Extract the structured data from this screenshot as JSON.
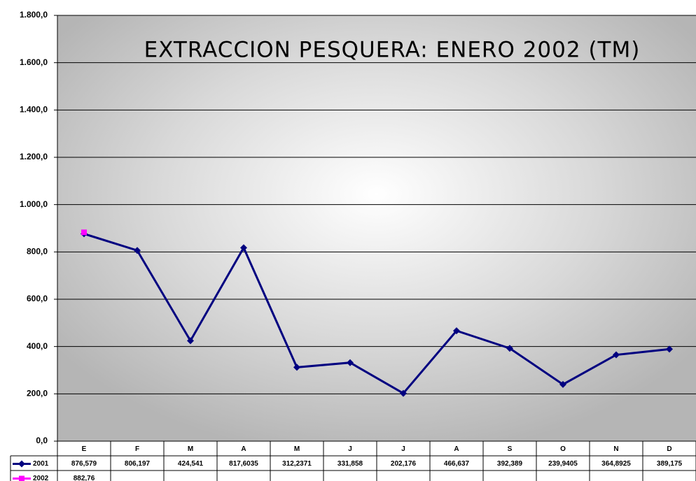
{
  "chart_data": {
    "type": "line",
    "title": "EXTRACCION PESQUERA: ENERO 2002 (TM)",
    "categories": [
      "E",
      "F",
      "M",
      "A",
      "M",
      "J",
      "J",
      "A",
      "S",
      "O",
      "N",
      "D"
    ],
    "series": [
      {
        "name": "2001",
        "color": "#000080",
        "values": [
          876.579,
          806.197,
          424.541,
          817.6035,
          312.2371,
          331.858,
          202.176,
          466.637,
          392.389,
          239.9405,
          364.8925,
          389.175
        ],
        "value_labels": [
          "876,579",
          "806,197",
          "424,541",
          "817,6035",
          "312,2371",
          "331,858",
          "202,176",
          "466,637",
          "392,389",
          "239,9405",
          "364,8925",
          "389,175"
        ]
      },
      {
        "name": "2002",
        "color": "#ff00ff",
        "values": [
          882.76,
          null,
          null,
          null,
          null,
          null,
          null,
          null,
          null,
          null,
          null,
          null
        ],
        "value_labels": [
          "882,76",
          null,
          null,
          null,
          null,
          null,
          null,
          null,
          null,
          null,
          null,
          null
        ]
      }
    ],
    "ylim": [
      0,
      1800
    ],
    "yticks": [
      {
        "value": 0,
        "label": "0,0"
      },
      {
        "value": 200,
        "label": "200,0"
      },
      {
        "value": 400,
        "label": "400,0"
      },
      {
        "value": 600,
        "label": "600,0"
      },
      {
        "value": 800,
        "label": "800,0"
      },
      {
        "value": 1000,
        "label": "1.000,0"
      },
      {
        "value": 1200,
        "label": "1.200,0"
      },
      {
        "value": 1400,
        "label": "1.400,0"
      },
      {
        "value": 1600,
        "label": "1.600,0"
      },
      {
        "value": 1800,
        "label": "1.800,0"
      }
    ],
    "grid": true
  }
}
